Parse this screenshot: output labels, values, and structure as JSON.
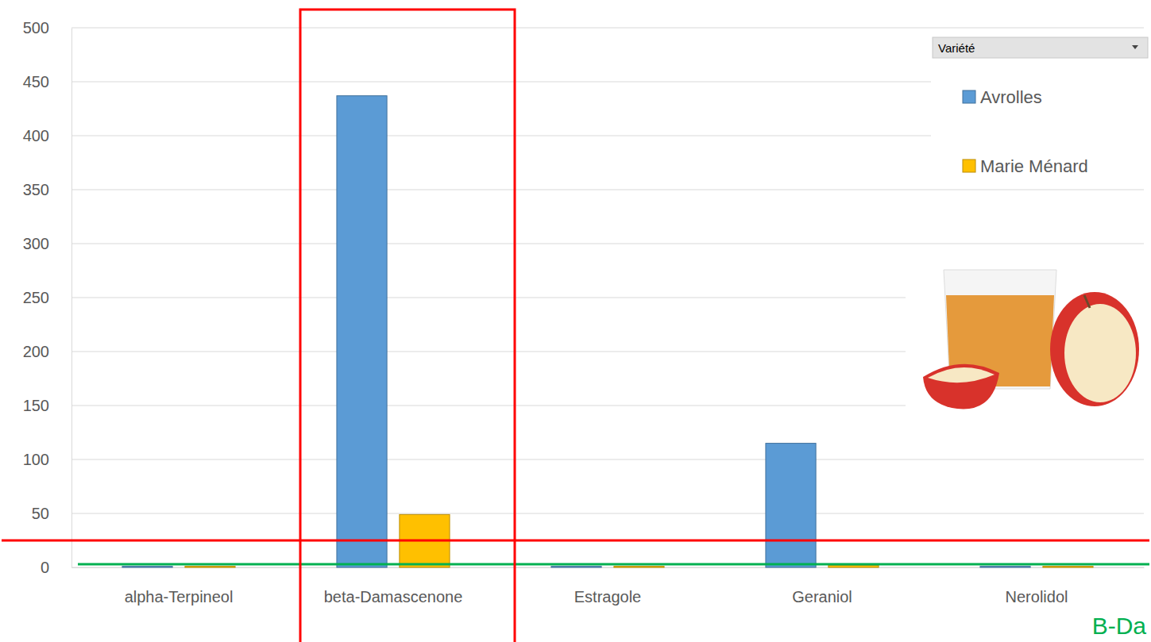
{
  "chart_data": {
    "type": "bar",
    "categories": [
      "alpha-Terpineol",
      "beta-Damascenone",
      "Estragole",
      "Geraniol",
      "Nerolidol"
    ],
    "series": [
      {
        "name": "Avrolles",
        "color": "#5b9bd5",
        "values": [
          1,
          437,
          1,
          115,
          1
        ]
      },
      {
        "name": "Marie Ménard",
        "color": "#ffc000",
        "values": [
          1,
          49,
          1,
          2,
          1
        ]
      }
    ],
    "ylim": [
      0,
      500
    ],
    "yticks": [
      0,
      50,
      100,
      150,
      200,
      250,
      300,
      350,
      400,
      450,
      500
    ],
    "grid": true,
    "legend": "top-right",
    "legend_title": "Variété",
    "hlines": [
      {
        "value": 25,
        "color": "#ff0000"
      },
      {
        "value": 3,
        "color": "#00b050"
      }
    ],
    "highlight": {
      "category": "beta-Damascenone",
      "color": "#ff0000"
    },
    "annotations": [
      {
        "text": "B-Da",
        "color": "#00b050"
      }
    ]
  }
}
